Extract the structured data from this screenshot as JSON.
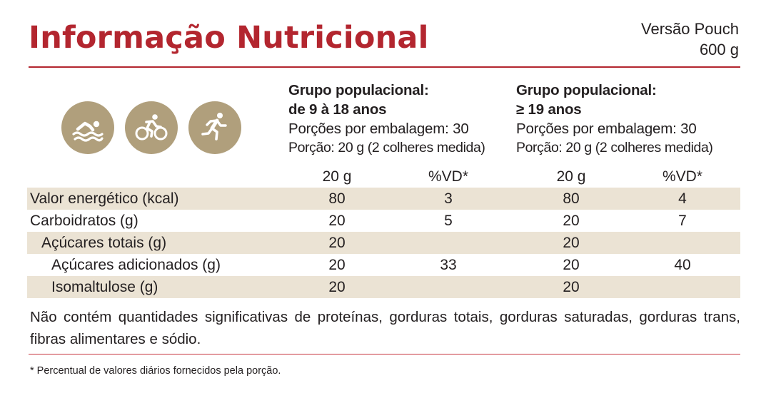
{
  "header": {
    "title": "Informação Nutricional",
    "version_line1": "Versão Pouch",
    "version_line2": "600 g"
  },
  "icons": [
    "swimming-icon",
    "cycling-icon",
    "running-icon"
  ],
  "groups": [
    {
      "title": "Grupo populacional:",
      "range": "de 9 à 18 anos",
      "servings": "Porções por embalagem: 30",
      "portion": "Porção: 20 g (2 colheres medida)"
    },
    {
      "title": "Grupo populacional:",
      "range": "≥ 19 anos",
      "servings": "Porções por embalagem: 30",
      "portion": "Porção: 20 g (2 colheres medida)"
    }
  ],
  "table": {
    "columns": [
      "20 g",
      "%VD*",
      "20 g",
      "%VD*"
    ],
    "rows": [
      {
        "label": "Valor energético (kcal)",
        "values": [
          "80",
          "3",
          "80",
          "4"
        ]
      },
      {
        "label": "Carboidratos (g)",
        "values": [
          "20",
          "5",
          "20",
          "7"
        ]
      },
      {
        "label": "Açúcares totais (g)",
        "values": [
          "20",
          "",
          "20",
          ""
        ]
      },
      {
        "label": "Açúcares adicionados (g)",
        "values": [
          "20",
          "33",
          "20",
          "40"
        ]
      },
      {
        "label": "Isomaltulose (g)",
        "values": [
          "20",
          "",
          "20",
          ""
        ]
      }
    ]
  },
  "note": "Não contém quantidades significativas de proteínas, gorduras totais, gorduras saturadas, gorduras trans, fibras alimentares e sódio.",
  "footnote": "* Percentual de valores diários fornecidos pela porção.",
  "colors": {
    "accent": "#b3262f",
    "icon_bg": "#b09f7c",
    "row_shade": "#ebe3d4"
  }
}
